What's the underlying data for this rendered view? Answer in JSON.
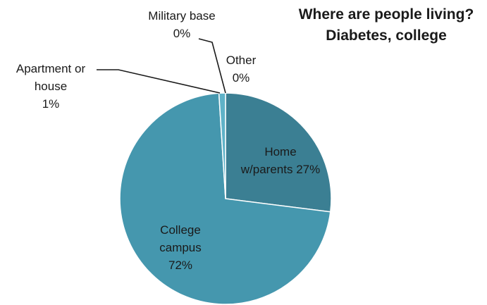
{
  "chart_data": {
    "type": "pie",
    "title_lines": [
      "Where are people living?",
      "Diabetes, college"
    ],
    "slices": [
      {
        "label_lines": [
          "Home",
          "w/parents 27%"
        ],
        "value": 27,
        "color": "#3b7f93"
      },
      {
        "label_lines": [
          "College",
          "campus",
          "72%"
        ],
        "value": 72,
        "color": "#4597ae"
      },
      {
        "label_lines": [
          "Apartment or",
          "house",
          "1%"
        ],
        "value": 1,
        "color": "#5fb2c8"
      },
      {
        "label_lines": [
          "Military base",
          "0%"
        ],
        "value": 0,
        "color": "#3f8fa6"
      },
      {
        "label_lines": [
          "Other",
          "0%"
        ],
        "value": 0,
        "color": "#3f8fa6"
      }
    ]
  }
}
